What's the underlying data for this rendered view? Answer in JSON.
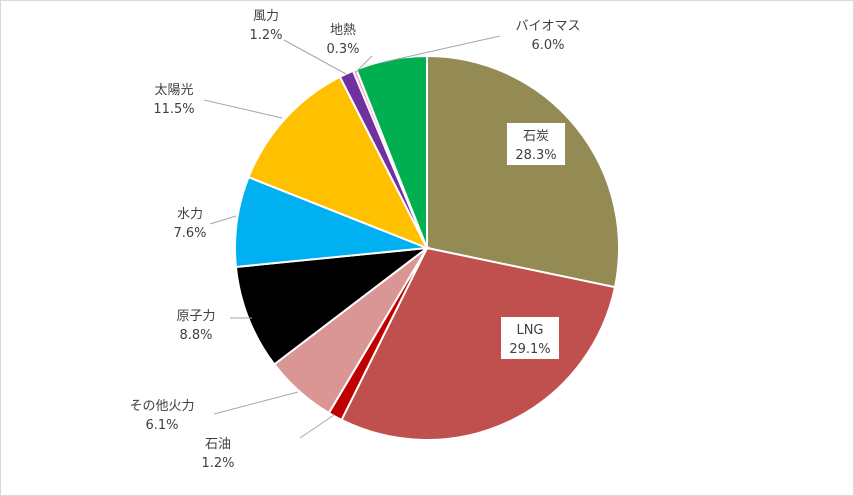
{
  "chart_data": {
    "type": "pie",
    "title": "",
    "unit": "%",
    "slices": [
      {
        "name": "石炭",
        "value": 28.3,
        "label": "28.3%",
        "color": "#948A54"
      },
      {
        "name": "LNG",
        "value": 29.1,
        "label": "29.1%",
        "color": "#C0504D"
      },
      {
        "name": "石油",
        "value": 1.2,
        "label": "1.2%",
        "color": "#C00000"
      },
      {
        "name": "その他火力",
        "value": 6.1,
        "label": "6.1%",
        "color": "#DA9694"
      },
      {
        "name": "原子力",
        "value": 8.8,
        "label": "8.8%",
        "color": "#000000"
      },
      {
        "name": "水力",
        "value": 7.6,
        "label": "7.6%",
        "color": "#00B0F0"
      },
      {
        "name": "太陽光",
        "value": 11.5,
        "label": "11.5%",
        "color": "#FFC000"
      },
      {
        "name": "風力",
        "value": 1.2,
        "label": "1.2%",
        "color": "#7030A0"
      },
      {
        "name": "地熱",
        "value": 0.3,
        "label": "0.3%",
        "color": "#FF99CC"
      },
      {
        "name": "バイオマス",
        "value": 6.0,
        "label": "6.0%",
        "color": "#00B050"
      }
    ]
  }
}
